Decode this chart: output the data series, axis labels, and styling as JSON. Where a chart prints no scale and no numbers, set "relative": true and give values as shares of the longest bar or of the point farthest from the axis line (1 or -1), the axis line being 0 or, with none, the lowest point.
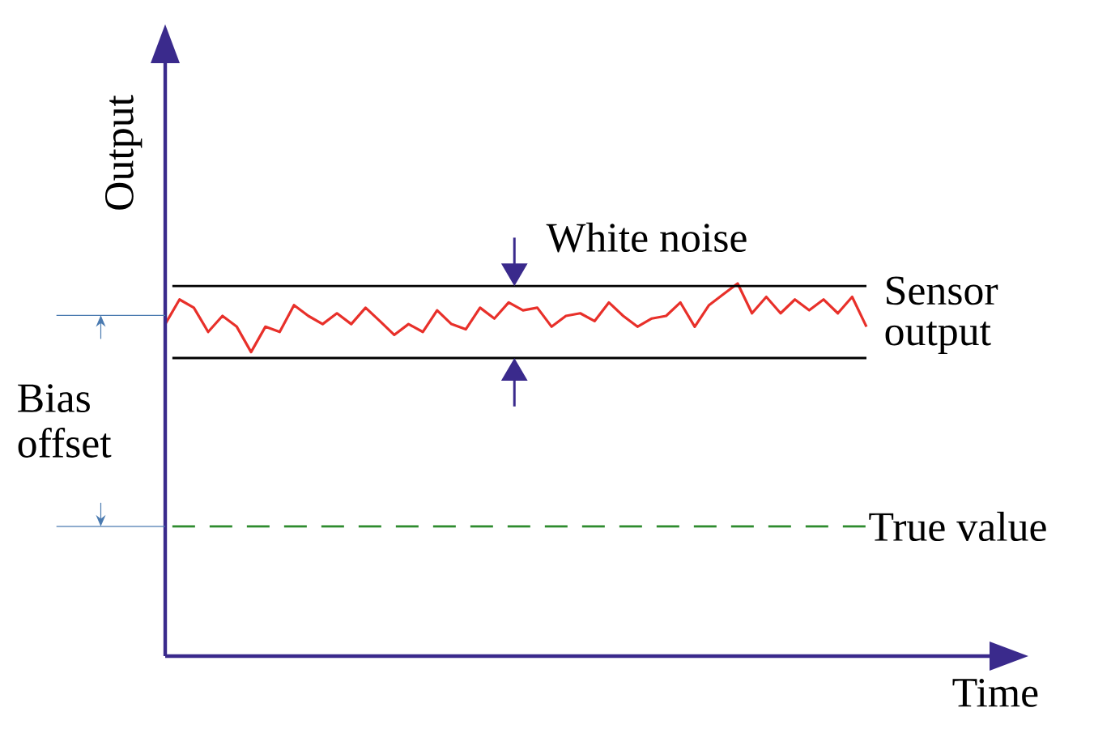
{
  "chart_data": {
    "type": "line",
    "xlabel": "Time",
    "ylabel": "Output",
    "relative": true,
    "categories": [
      null,
      null,
      null,
      null,
      null,
      null,
      null,
      null,
      null,
      null,
      null,
      null,
      null,
      null,
      null,
      null,
      null,
      null,
      null,
      null,
      null,
      null,
      null,
      null,
      null,
      null,
      null,
      null,
      null,
      null,
      null,
      null,
      null,
      null,
      null,
      null,
      null,
      null,
      null,
      null,
      null,
      null,
      null,
      null,
      null,
      null,
      null,
      null,
      null,
      null
    ],
    "series": [
      {
        "name": "Sensor output",
        "color": "#e8302a",
        "values": [
          0.891,
          0.957,
          0.935,
          0.87,
          0.913,
          0.884,
          0.816,
          0.884,
          0.87,
          0.942,
          0.913,
          0.891,
          0.92,
          0.891,
          0.935,
          0.899,
          0.862,
          0.891,
          0.87,
          0.928,
          0.891,
          0.877,
          0.935,
          0.906,
          0.949,
          0.928,
          0.935,
          0.884,
          0.913,
          0.92,
          0.899,
          0.949,
          0.913,
          0.884,
          0.906,
          0.913,
          0.949,
          0.884,
          0.942,
          0.971,
          1.0,
          0.92,
          0.964,
          0.92,
          0.957,
          0.928,
          0.957,
          0.92,
          0.964,
          0.884
        ]
      }
    ],
    "ref_lines": [
      {
        "axis": "y",
        "value": 0.993,
        "label": null,
        "color": "#000000",
        "line_style": "solid"
      },
      {
        "axis": "y",
        "value": 0.8,
        "label": null,
        "color": "#000000",
        "line_style": "solid"
      },
      {
        "axis": "y",
        "value": 0.348,
        "label": "True value",
        "color": "#2e8b2e",
        "line_style": "dashed"
      }
    ],
    "annotations": [
      "White noise",
      "Bias offset"
    ]
  }
}
